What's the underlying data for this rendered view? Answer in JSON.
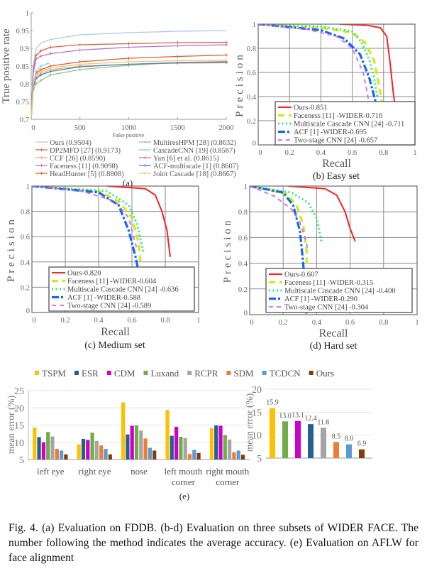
{
  "figure": {
    "caption": "Fig. 4.  (a) Evaluation on FDDB. (b-d) Evaluation on three subsets of WIDER FACE. The number following the method indicates the average accuracy. (e) Evaluation on AFLW for face alignment",
    "panel_e_label": "(e)"
  },
  "chart_data": [
    {
      "panel": "(a)",
      "type": "line",
      "xlabel": "False positive",
      "ylabel": "True positive rate",
      "xlim": [
        0,
        2000
      ],
      "ylim": [
        0.7,
        1
      ],
      "xticks": [
        0,
        500,
        1000,
        1500,
        2000
      ],
      "yticks": [
        0.7,
        0.75,
        0.8,
        0.85,
        0.9,
        0.95,
        1
      ],
      "grid": false,
      "legend_position": "bottom",
      "series": [
        {
          "name": "Ours (0.9504)",
          "color": "#a9c9ee",
          "x": [
            0,
            20,
            50,
            100,
            200,
            500,
            1000,
            1500,
            2000
          ],
          "y": [
            0.7,
            0.85,
            0.9,
            0.915,
            0.925,
            0.938,
            0.944,
            0.948,
            0.95
          ]
        },
        {
          "name": "DP2MFD [27] (0.9173)",
          "color": "#e2603c",
          "x": [
            0,
            20,
            50,
            100,
            200,
            500,
            1000,
            1500,
            2000
          ],
          "y": [
            0.7,
            0.84,
            0.88,
            0.893,
            0.903,
            0.91,
            0.913,
            0.916,
            0.917
          ]
        },
        {
          "name": "CCF [26] (0.8590)",
          "color": "#e8b27a",
          "x": [
            0,
            20,
            50,
            100,
            200,
            500,
            1000,
            1500,
            2000
          ],
          "y": [
            0.7,
            0.79,
            0.82,
            0.83,
            0.84,
            0.85,
            0.855,
            0.858,
            0.859
          ]
        },
        {
          "name": "Faceness [11] (0.9098)",
          "color": "#b274d2",
          "x": [
            0,
            20,
            50,
            100,
            200,
            500,
            1000,
            1500,
            2000
          ],
          "y": [
            0.7,
            0.83,
            0.87,
            0.878,
            0.885,
            0.895,
            0.903,
            0.907,
            0.91
          ]
        },
        {
          "name": "HeadHunter [5] (0.8808)",
          "color": "#e55a30",
          "x": [
            0,
            20,
            50,
            100,
            200,
            500,
            1000,
            1500,
            2000
          ],
          "y": [
            0.7,
            0.8,
            0.83,
            0.84,
            0.85,
            0.862,
            0.872,
            0.877,
            0.881
          ]
        },
        {
          "name": "MultiresHPM [28] (0.8632)",
          "color": "#94c474",
          "x": [
            0,
            20,
            50,
            100,
            200,
            500,
            1000,
            1500,
            2000
          ],
          "y": [
            0.7,
            0.78,
            0.8,
            0.81,
            0.825,
            0.84,
            0.852,
            0.86,
            0.863
          ]
        },
        {
          "name": "CascadeCNN [19] (0.8567)",
          "color": "#86ccf0",
          "x": [
            0,
            20,
            50,
            100,
            170
          ],
          "y": [
            0.7,
            0.8,
            0.835,
            0.85,
            0.857
          ]
        },
        {
          "name": "Yan [6] et al. (0.8615)",
          "color": "#c87898",
          "x": [
            0,
            20,
            50,
            100,
            200,
            500,
            1000,
            1500,
            2000
          ],
          "y": [
            0.7,
            0.79,
            0.815,
            0.825,
            0.835,
            0.848,
            0.855,
            0.86,
            0.862
          ]
        },
        {
          "name": "ACF-multiscale [1] (0.8607)",
          "color": "#4a86d2",
          "x": [
            0,
            20,
            50,
            100,
            200,
            500,
            1000,
            1500,
            2000
          ],
          "y": [
            0.7,
            0.79,
            0.815,
            0.825,
            0.835,
            0.848,
            0.855,
            0.859,
            0.861
          ]
        },
        {
          "name": "Joint Cascade [18] (0.8667)",
          "color": "#ecc86a",
          "x": [
            0,
            20,
            50,
            100,
            200,
            500,
            1000,
            1500,
            2000
          ],
          "y": [
            0.7,
            0.8,
            0.825,
            0.835,
            0.845,
            0.855,
            0.862,
            0.865,
            0.867
          ]
        }
      ]
    },
    {
      "panel": "(b) Easy set",
      "type": "line",
      "xlabel": "Recall",
      "ylabel": "Precision",
      "xlim": [
        0,
        1
      ],
      "ylim": [
        0,
        1
      ],
      "xticks": [
        0,
        0.2,
        0.4,
        0.6,
        0.8,
        1
      ],
      "yticks": [
        0,
        0.2,
        0.4,
        0.6,
        0.8,
        1
      ],
      "grid": true,
      "legend_position": "bottom-center",
      "series": [
        {
          "name": "Ours-0.851",
          "color": "#ff2020",
          "points": [
            [
              0.52,
              1
            ],
            [
              0.7,
              0.99
            ],
            [
              0.78,
              0.97
            ],
            [
              0.82,
              0.9
            ],
            [
              0.84,
              0.7
            ],
            [
              0.86,
              0.45
            ],
            [
              0.87,
              0.35
            ]
          ]
        },
        {
          "name": "Faceness [11] -WIDER-0.716",
          "color": "#c8f000",
          "points": [
            [
              0,
              1
            ],
            [
              0.4,
              0.97
            ],
            [
              0.6,
              0.93
            ],
            [
              0.68,
              0.85
            ],
            [
              0.74,
              0.7
            ],
            [
              0.77,
              0.5
            ],
            [
              0.79,
              0.35
            ]
          ]
        },
        {
          "name": "Multiscale Cascade CNN [24] -0.711",
          "color": "#2ee878",
          "points": [
            [
              0,
              1
            ],
            [
              0.4,
              0.98
            ],
            [
              0.6,
              0.94
            ],
            [
              0.66,
              0.85
            ],
            [
              0.71,
              0.7
            ],
            [
              0.74,
              0.55
            ],
            [
              0.76,
              0.4
            ]
          ]
        },
        {
          "name": "ACF [1] -WIDER-0.695",
          "color": "#1464ff",
          "points": [
            [
              0,
              1
            ],
            [
              0.4,
              0.95
            ],
            [
              0.55,
              0.88
            ],
            [
              0.65,
              0.75
            ],
            [
              0.71,
              0.55
            ],
            [
              0.75,
              0.35
            ],
            [
              0.78,
              0.15
            ],
            [
              0.8,
              0
            ]
          ]
        },
        {
          "name": "Two-stage CNN [24] -0.657",
          "color": "#d264ff",
          "points": [
            [
              0,
              1
            ],
            [
              0.3,
              0.96
            ],
            [
              0.5,
              0.9
            ],
            [
              0.6,
              0.8
            ],
            [
              0.67,
              0.6
            ],
            [
              0.7,
              0.4
            ],
            [
              0.71,
              0.3
            ]
          ]
        }
      ]
    },
    {
      "panel": "(c) Medium set",
      "type": "line",
      "xlabel": "Recall",
      "ylabel": "Precision",
      "xlim": [
        0,
        1
      ],
      "ylim": [
        0,
        1
      ],
      "xticks": [
        0,
        0.2,
        0.4,
        0.6,
        0.8,
        1
      ],
      "yticks": [
        0,
        0.2,
        0.4,
        0.6,
        0.8,
        1
      ],
      "grid": true,
      "legend_position": "bottom-center",
      "series": [
        {
          "name": "Ours-0.820",
          "color": "#ff2020",
          "points": [
            [
              0.45,
              1
            ],
            [
              0.68,
              0.98
            ],
            [
              0.74,
              0.93
            ],
            [
              0.78,
              0.8
            ],
            [
              0.81,
              0.65
            ],
            [
              0.83,
              0.44
            ]
          ]
        },
        {
          "name": "Faceness [11] -WIDER-0.604",
          "color": "#c8f000",
          "points": [
            [
              0,
              1
            ],
            [
              0.4,
              0.96
            ],
            [
              0.52,
              0.88
            ],
            [
              0.6,
              0.75
            ],
            [
              0.64,
              0.55
            ],
            [
              0.65,
              0.4
            ]
          ]
        },
        {
          "name": "Multiscale Cascade CNN [24] -0.636",
          "color": "#2ee878",
          "points": [
            [
              0,
              1
            ],
            [
              0.45,
              0.96
            ],
            [
              0.58,
              0.85
            ],
            [
              0.63,
              0.7
            ],
            [
              0.67,
              0.47
            ]
          ]
        },
        {
          "name": "ACF [1] -WIDER-0.588",
          "color": "#1464ff",
          "points": [
            [
              0,
              1
            ],
            [
              0.4,
              0.95
            ],
            [
              0.52,
              0.85
            ],
            [
              0.58,
              0.65
            ],
            [
              0.62,
              0.45
            ],
            [
              0.66,
              0.2
            ],
            [
              0.7,
              0
            ]
          ]
        },
        {
          "name": "Two-stage CNN [24] -0.589",
          "color": "#d264ff",
          "points": [
            [
              0,
              1
            ],
            [
              0.3,
              0.96
            ],
            [
              0.5,
              0.88
            ],
            [
              0.58,
              0.75
            ],
            [
              0.62,
              0.55
            ],
            [
              0.63,
              0.5
            ]
          ]
        }
      ]
    },
    {
      "panel": "(d) Hard set",
      "type": "line",
      "xlabel": "Recall",
      "ylabel": "Precision",
      "xlim": [
        0,
        1
      ],
      "ylim": [
        0,
        1
      ],
      "xticks": [
        0,
        0.2,
        0.4,
        0.6,
        0.8,
        1
      ],
      "yticks": [
        0,
        0.2,
        0.4,
        0.6,
        0.8,
        1
      ],
      "grid": true,
      "legend_position": "bottom-center",
      "series": [
        {
          "name": "Ours-0.607",
          "color": "#ff2020",
          "points": [
            [
              0.23,
              1
            ],
            [
              0.45,
              0.98
            ],
            [
              0.52,
              0.93
            ],
            [
              0.57,
              0.8
            ],
            [
              0.6,
              0.67
            ],
            [
              0.63,
              0.57
            ]
          ]
        },
        {
          "name": "Faceness [11] -WIDER-0.315",
          "color": "#c8f000",
          "points": [
            [
              0,
              1
            ],
            [
              0.22,
              0.94
            ],
            [
              0.28,
              0.85
            ],
            [
              0.32,
              0.7
            ],
            [
              0.34,
              0.5
            ],
            [
              0.34,
              0.38
            ]
          ]
        },
        {
          "name": "Multiscale Cascade CNN [24] -0.400",
          "color": "#2ee878",
          "points": [
            [
              0,
              1
            ],
            [
              0.25,
              0.95
            ],
            [
              0.35,
              0.87
            ],
            [
              0.4,
              0.75
            ],
            [
              0.43,
              0.56
            ]
          ]
        },
        {
          "name": "ACF [1] -WIDER-0.290",
          "color": "#1464ff",
          "points": [
            [
              0,
              1
            ],
            [
              0.2,
              0.95
            ],
            [
              0.26,
              0.85
            ],
            [
              0.3,
              0.65
            ],
            [
              0.32,
              0.4
            ],
            [
              0.33,
              0.15
            ],
            [
              0.34,
              0
            ]
          ]
        },
        {
          "name": "Two-stage CNN [24] -0.304",
          "color": "#d264ff",
          "points": [
            [
              0,
              1
            ],
            [
              0.15,
              0.92
            ],
            [
              0.25,
              0.82
            ],
            [
              0.3,
              0.72
            ],
            [
              0.33,
              0.6
            ],
            [
              0.35,
              0.5
            ]
          ]
        }
      ]
    },
    {
      "panel": "(e) left",
      "type": "bar",
      "ylabel": "mean error (%)",
      "ylim": [
        5,
        25
      ],
      "yticks": [
        5,
        10,
        15,
        20,
        25
      ],
      "grid": true,
      "legend_position": "top",
      "categories": [
        "left eye",
        "right eye",
        "nose",
        "left mouth corner",
        "right mouth corner"
      ],
      "series": [
        {
          "name": "TSPM",
          "color": "#ffc000",
          "values": [
            14.3,
            9.4,
            21.6,
            19.4,
            14.1
          ]
        },
        {
          "name": "ESR",
          "color": "#255e91",
          "values": [
            11.5,
            11.0,
            12.3,
            11.9,
            14.9
          ]
        },
        {
          "name": "CDM",
          "color": "#cc00cc",
          "values": [
            10.0,
            10.7,
            14.8,
            14.5,
            14.8
          ]
        },
        {
          "name": "Luxand",
          "color": "#70ad47",
          "values": [
            13.0,
            12.8,
            14.9,
            11.6,
            12.1
          ]
        },
        {
          "name": "RCPR",
          "color": "#a5a5a5",
          "values": [
            11.7,
            10.4,
            13.4,
            11.2,
            10.8
          ]
        },
        {
          "name": "SDM",
          "color": "#ed7d31",
          "values": [
            8.1,
            9.1,
            11.1,
            6.6,
            7.1
          ]
        },
        {
          "name": "TCDCN",
          "color": "#5b9bd5",
          "values": [
            7.6,
            8.1,
            8.4,
            7.8,
            7.6
          ]
        },
        {
          "name": "Ours",
          "color": "#843c0c",
          "values": [
            6.5,
            6.5,
            7.6,
            6.9,
            6.4
          ]
        }
      ]
    },
    {
      "panel": "(e) right",
      "type": "bar",
      "ylabel": "mean error (%)",
      "ylim": [
        5,
        20
      ],
      "yticks": [
        5,
        10,
        15,
        20
      ],
      "grid": true,
      "categories": [
        "TSPM",
        "Luxand",
        "CDM",
        "ESR",
        "RCPR",
        "SDM",
        "TCDCN",
        "Ours"
      ],
      "colors": [
        "#ffc000",
        "#70ad47",
        "#cc00cc",
        "#255e91",
        "#a5a5a5",
        "#ed7d31",
        "#5b9bd5",
        "#843c0c"
      ],
      "values": [
        15.9,
        13.0,
        13.1,
        12.4,
        11.6,
        8.5,
        8.0,
        6.9
      ]
    }
  ]
}
